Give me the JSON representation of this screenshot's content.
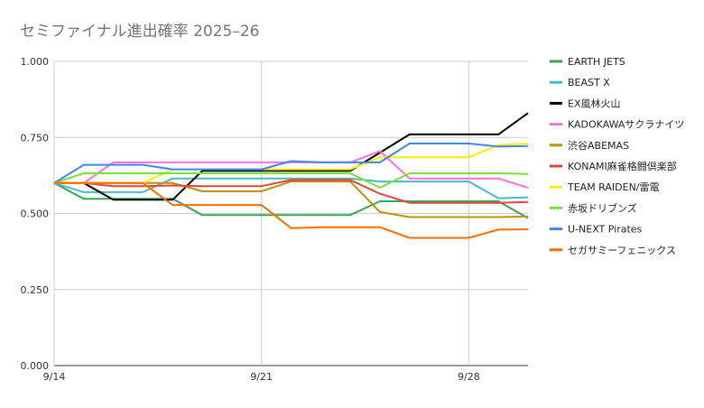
{
  "chart_data": {
    "type": "line",
    "title": "セミファイナル進出確率 2025–26",
    "xlabel": "",
    "ylabel": "",
    "x_ticks": [
      "9/14",
      "9/21",
      "9/28"
    ],
    "x_range": [
      "9/14",
      "9/30"
    ],
    "y_ticks": [
      "0.000",
      "0.250",
      "0.500",
      "0.750",
      "1.000"
    ],
    "ylim": [
      0,
      1
    ],
    "grid": true,
    "legend_position": "right",
    "series": [
      {
        "name": "EARTH JETS",
        "color": "#33a853",
        "points": [
          [
            "9/14",
            0.6
          ],
          [
            "9/15",
            0.548
          ],
          [
            "9/16",
            0.548
          ],
          [
            "9/17",
            0.548
          ],
          [
            "9/18",
            0.548
          ],
          [
            "9/19",
            0.495
          ],
          [
            "9/20",
            0.495
          ],
          [
            "9/21",
            0.495
          ],
          [
            "9/22",
            0.495
          ],
          [
            "9/23",
            0.495
          ],
          [
            "9/24",
            0.495
          ],
          [
            "9/25",
            0.54
          ],
          [
            "9/26",
            0.54
          ],
          [
            "9/27",
            0.54
          ],
          [
            "9/28",
            0.54
          ],
          [
            "9/29",
            0.54
          ],
          [
            "9/30",
            0.485
          ]
        ]
      },
      {
        "name": "BEAST X",
        "color": "#46bdc6",
        "points": [
          [
            "9/14",
            0.6
          ],
          [
            "9/15",
            0.57
          ],
          [
            "9/16",
            0.57
          ],
          [
            "9/17",
            0.57
          ],
          [
            "9/18",
            0.615
          ],
          [
            "9/19",
            0.615
          ],
          [
            "9/20",
            0.615
          ],
          [
            "9/21",
            0.615
          ],
          [
            "9/22",
            0.615
          ],
          [
            "9/23",
            0.615
          ],
          [
            "9/24",
            0.615
          ],
          [
            "9/25",
            0.605
          ],
          [
            "9/26",
            0.605
          ],
          [
            "9/27",
            0.605
          ],
          [
            "9/28",
            0.605
          ],
          [
            "9/29",
            0.55
          ],
          [
            "9/30",
            0.553
          ]
        ]
      },
      {
        "name": "EX風林火山",
        "color": "#000000",
        "points": [
          [
            "9/14",
            0.6
          ],
          [
            "9/15",
            0.6
          ],
          [
            "9/16",
            0.545
          ],
          [
            "9/17",
            0.545
          ],
          [
            "9/18",
            0.545
          ],
          [
            "9/19",
            0.64
          ],
          [
            "9/20",
            0.64
          ],
          [
            "9/21",
            0.64
          ],
          [
            "9/22",
            0.64
          ],
          [
            "9/23",
            0.64
          ],
          [
            "9/24",
            0.64
          ],
          [
            "9/25",
            0.7
          ],
          [
            "9/26",
            0.76
          ],
          [
            "9/27",
            0.76
          ],
          [
            "9/28",
            0.76
          ],
          [
            "9/29",
            0.76
          ],
          [
            "9/30",
            0.83
          ]
        ]
      },
      {
        "name": "KADOKAWAサクラナイツ",
        "color": "#ff6ee0",
        "points": [
          [
            "9/14",
            0.6
          ],
          [
            "9/15",
            0.6
          ],
          [
            "9/16",
            0.668
          ],
          [
            "9/17",
            0.668
          ],
          [
            "9/18",
            0.668
          ],
          [
            "9/19",
            0.668
          ],
          [
            "9/20",
            0.668
          ],
          [
            "9/21",
            0.668
          ],
          [
            "9/22",
            0.668
          ],
          [
            "9/23",
            0.668
          ],
          [
            "9/24",
            0.668
          ],
          [
            "9/25",
            0.705
          ],
          [
            "9/26",
            0.615
          ],
          [
            "9/27",
            0.615
          ],
          [
            "9/28",
            0.615
          ],
          [
            "9/29",
            0.615
          ],
          [
            "9/30",
            0.585
          ]
        ]
      },
      {
        "name": "渋谷ABEMAS",
        "color": "#bf9000",
        "points": [
          [
            "9/14",
            0.6
          ],
          [
            "9/15",
            0.6
          ],
          [
            "9/16",
            0.6
          ],
          [
            "9/17",
            0.6
          ],
          [
            "9/18",
            0.6
          ],
          [
            "9/19",
            0.573
          ],
          [
            "9/20",
            0.573
          ],
          [
            "9/21",
            0.573
          ],
          [
            "9/22",
            0.605
          ],
          [
            "9/23",
            0.605
          ],
          [
            "9/24",
            0.605
          ],
          [
            "9/25",
            0.505
          ],
          [
            "9/26",
            0.488
          ],
          [
            "9/27",
            0.488
          ],
          [
            "9/28",
            0.488
          ],
          [
            "9/29",
            0.488
          ],
          [
            "9/30",
            0.49
          ]
        ]
      },
      {
        "name": "KONAMI麻雀格闘倶楽部",
        "color": "#ea4335",
        "points": [
          [
            "9/14",
            0.6
          ],
          [
            "9/15",
            0.6
          ],
          [
            "9/16",
            0.59
          ],
          [
            "9/17",
            0.59
          ],
          [
            "9/18",
            0.592
          ],
          [
            "9/19",
            0.59
          ],
          [
            "9/20",
            0.59
          ],
          [
            "9/21",
            0.59
          ],
          [
            "9/22",
            0.61
          ],
          [
            "9/23",
            0.61
          ],
          [
            "9/24",
            0.61
          ],
          [
            "9/25",
            0.565
          ],
          [
            "9/26",
            0.535
          ],
          [
            "9/27",
            0.535
          ],
          [
            "9/28",
            0.535
          ],
          [
            "9/29",
            0.535
          ],
          [
            "9/30",
            0.538
          ]
        ]
      },
      {
        "name": "TEAM RAIDEN/雷電",
        "color": "#ffee00",
        "points": [
          [
            "9/14",
            0.6
          ],
          [
            "9/15",
            0.6
          ],
          [
            "9/16",
            0.6
          ],
          [
            "9/17",
            0.6
          ],
          [
            "9/18",
            0.645
          ],
          [
            "9/19",
            0.645
          ],
          [
            "9/20",
            0.645
          ],
          [
            "9/21",
            0.645
          ],
          [
            "9/22",
            0.645
          ],
          [
            "9/23",
            0.645
          ],
          [
            "9/24",
            0.645
          ],
          [
            "9/25",
            0.685
          ],
          [
            "9/26",
            0.685
          ],
          [
            "9/27",
            0.685
          ],
          [
            "9/28",
            0.685
          ],
          [
            "9/29",
            0.725
          ],
          [
            "9/30",
            0.73
          ]
        ]
      },
      {
        "name": "赤坂ドリブンズ",
        "color": "#7be03a",
        "points": [
          [
            "9/14",
            0.6
          ],
          [
            "9/15",
            0.632
          ],
          [
            "9/16",
            0.632
          ],
          [
            "9/17",
            0.632
          ],
          [
            "9/18",
            0.632
          ],
          [
            "9/19",
            0.632
          ],
          [
            "9/20",
            0.632
          ],
          [
            "9/21",
            0.632
          ],
          [
            "9/22",
            0.632
          ],
          [
            "9/23",
            0.632
          ],
          [
            "9/24",
            0.632
          ],
          [
            "9/25",
            0.585
          ],
          [
            "9/26",
            0.632
          ],
          [
            "9/27",
            0.632
          ],
          [
            "9/28",
            0.632
          ],
          [
            "9/29",
            0.632
          ],
          [
            "9/30",
            0.63
          ]
        ]
      },
      {
        "name": "U-NEXT Pirates",
        "color": "#4285f4",
        "points": [
          [
            "9/14",
            0.6
          ],
          [
            "9/15",
            0.66
          ],
          [
            "9/16",
            0.66
          ],
          [
            "9/17",
            0.66
          ],
          [
            "9/18",
            0.645
          ],
          [
            "9/19",
            0.645
          ],
          [
            "9/20",
            0.645
          ],
          [
            "9/21",
            0.645
          ],
          [
            "9/22",
            0.672
          ],
          [
            "9/23",
            0.668
          ],
          [
            "9/24",
            0.668
          ],
          [
            "9/25",
            0.668
          ],
          [
            "9/26",
            0.73
          ],
          [
            "9/27",
            0.73
          ],
          [
            "9/28",
            0.73
          ],
          [
            "9/29",
            0.72
          ],
          [
            "9/30",
            0.722
          ]
        ]
      },
      {
        "name": "セガサミーフェニックス",
        "color": "#ff6d01",
        "points": [
          [
            "9/14",
            0.6
          ],
          [
            "9/15",
            0.6
          ],
          [
            "9/16",
            0.6
          ],
          [
            "9/17",
            0.6
          ],
          [
            "9/18",
            0.528
          ],
          [
            "9/19",
            0.528
          ],
          [
            "9/20",
            0.528
          ],
          [
            "9/21",
            0.528
          ],
          [
            "9/22",
            0.452
          ],
          [
            "9/23",
            0.455
          ],
          [
            "9/24",
            0.455
          ],
          [
            "9/25",
            0.455
          ],
          [
            "9/26",
            0.42
          ],
          [
            "9/27",
            0.42
          ],
          [
            "9/28",
            0.42
          ],
          [
            "9/29",
            0.447
          ],
          [
            "9/30",
            0.448
          ]
        ]
      }
    ]
  }
}
